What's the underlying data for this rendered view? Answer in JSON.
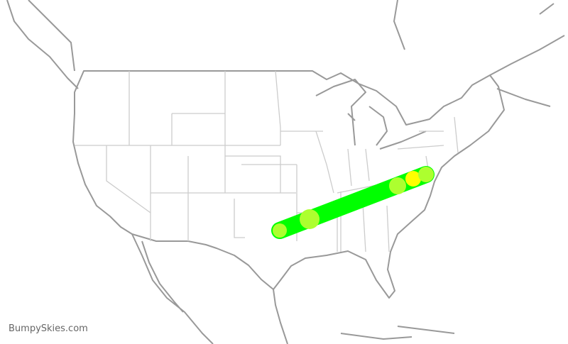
{
  "watermark": "BumpySkies.com",
  "route": {
    "line_color": "#00ff00",
    "markers": [
      {
        "name": "origin",
        "color": "#adff2f"
      },
      {
        "name": "waypoint-1",
        "color": "#adff2f"
      },
      {
        "name": "waypoint-2",
        "color": "#adff2f"
      },
      {
        "name": "waypoint-3",
        "color": "#ffff00"
      },
      {
        "name": "destination",
        "color": "#adff2f"
      }
    ]
  },
  "colors": {
    "coastline": "#999999",
    "state_border": "#cccccc",
    "background": "#ffffff"
  }
}
